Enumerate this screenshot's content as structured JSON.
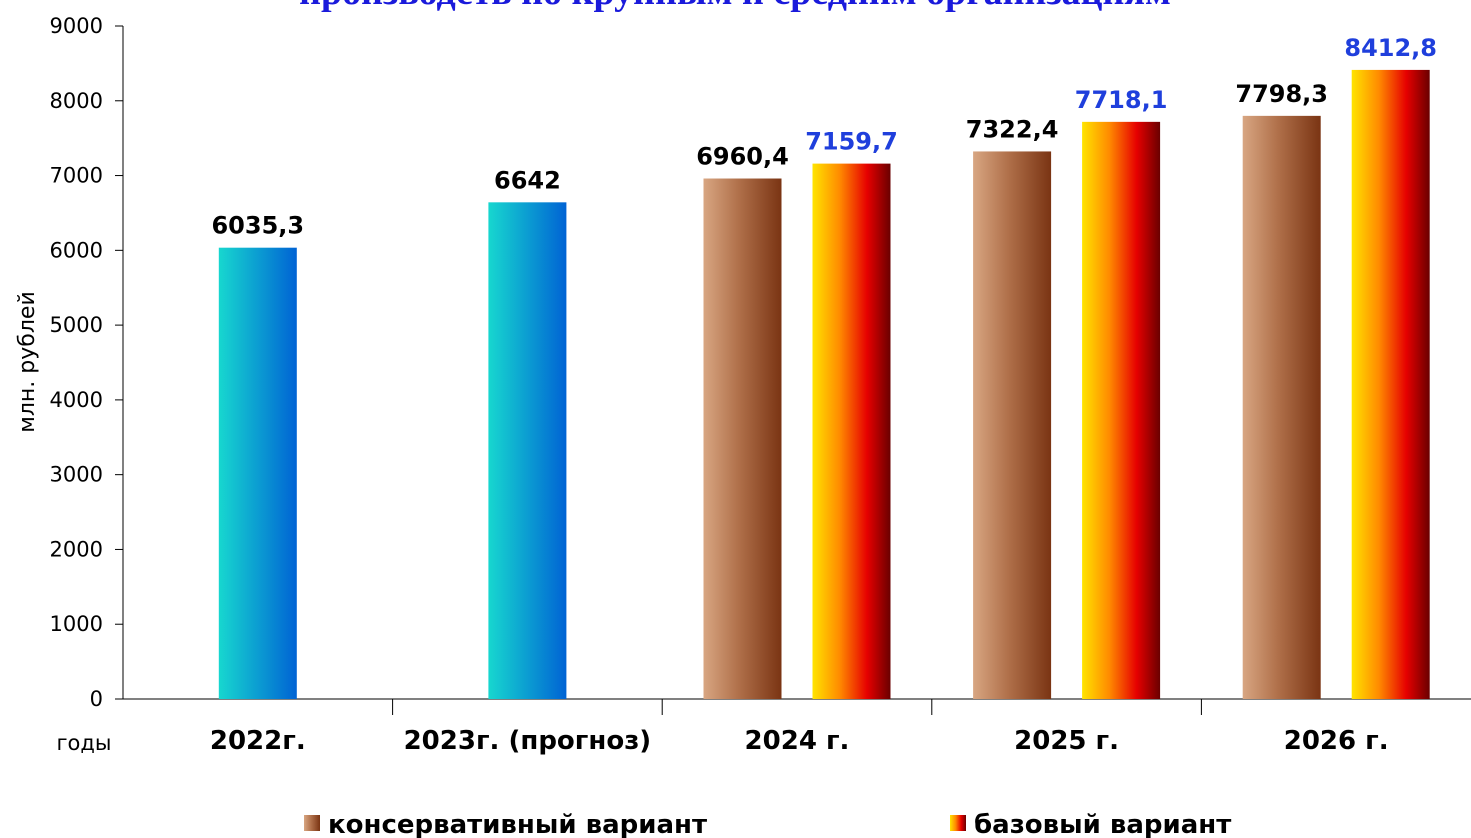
{
  "chart_data": {
    "type": "bar",
    "title": "производств по крупным и средним организациям",
    "ylabel": "млн. рублей",
    "xlabel": "годы",
    "ylim": [
      0,
      9000
    ],
    "yticks": [
      "0",
      "1000",
      "2000",
      "3000",
      "4000",
      "5000",
      "6000",
      "7000",
      "8000",
      "9000"
    ],
    "grid": false,
    "legend_position": "bottom",
    "categories": [
      "2022г.",
      "2023г. (прогноз)",
      "2024 г.",
      "2025 г.",
      "2026 г."
    ],
    "actual": {
      "values": [
        6035.3,
        6642
      ],
      "labels": [
        "6035,3",
        "6642"
      ]
    },
    "series": [
      {
        "name": "консервативный вариант",
        "values": [
          null,
          null,
          6960.4,
          7322.4,
          7798.3
        ],
        "labels": [
          "",
          "",
          "6960,4",
          "7322,4",
          "7798,3"
        ],
        "label_color": "#000000"
      },
      {
        "name": "базовый вариант",
        "values": [
          null,
          null,
          7159.7,
          7718.1,
          8412.8
        ],
        "labels": [
          "",
          "",
          "7159,7",
          "7718,1",
          "8412,8"
        ],
        "label_color": "#1f3fdc"
      }
    ],
    "colors": {
      "actual": [
        "#17d7cf",
        "#0063d4"
      ],
      "conservative": [
        "#d8a682",
        "#7a3413"
      ],
      "base": [
        "#ffe400",
        "#ff7800",
        "#e00000",
        "#6a0000"
      ],
      "title": "#1a1adb"
    }
  }
}
